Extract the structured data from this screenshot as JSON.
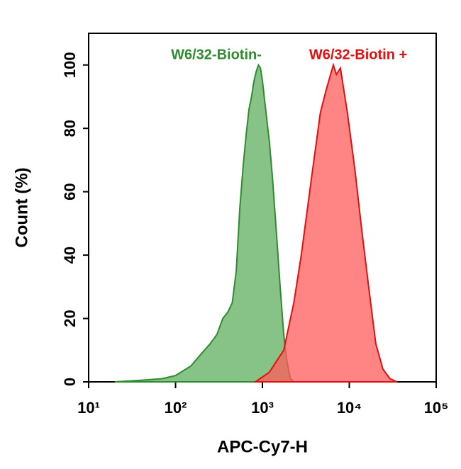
{
  "chart_data": {
    "type": "area",
    "xlabel": "APC-Cy7-H",
    "ylabel": "Count  (%)",
    "xscale": "log",
    "xlim": [
      10,
      100000
    ],
    "ylim": [
      0,
      110
    ],
    "xticks": [
      {
        "value": 10,
        "label": "10¹"
      },
      {
        "value": 100,
        "label": "10²"
      },
      {
        "value": 1000,
        "label": "10³"
      },
      {
        "value": 10000,
        "label": "10⁴"
      },
      {
        "value": 100000,
        "label": "10⁵"
      }
    ],
    "yticks": [
      0,
      20,
      40,
      60,
      80,
      100
    ],
    "series": [
      {
        "name": "W6/32-Biotin-",
        "color": "#2e8b2e",
        "fill": "#5fae5f",
        "x": [
          20,
          40,
          70,
          100,
          150,
          200,
          250,
          300,
          350,
          400,
          450,
          500,
          550,
          600,
          650,
          700,
          750,
          800,
          850,
          900,
          950,
          1000,
          1100,
          1200,
          1300,
          1450,
          1600,
          1760,
          1900,
          2100,
          2300
        ],
        "values": [
          0,
          0.5,
          1,
          2,
          5,
          9,
          12,
          15,
          20,
          22,
          25,
          35,
          55,
          68,
          78,
          86,
          90,
          95,
          98,
          100,
          99,
          95,
          85,
          76,
          65,
          47,
          30,
          15,
          7,
          1,
          0
        ]
      },
      {
        "name": "W6/32-Biotin +",
        "color": "#e01010",
        "fill": "#ff5c5c",
        "x": [
          830,
          1200,
          1760,
          2300,
          2800,
          3700,
          4650,
          5400,
          6550,
          7100,
          7900,
          9500,
          11600,
          13900,
          16700,
          20200,
          24400,
          29400,
          35400
        ],
        "values": [
          0,
          3,
          10,
          25,
          40,
          65,
          85,
          92,
          100,
          97,
          99,
          85,
          67,
          48,
          30,
          12,
          4,
          1,
          0
        ]
      }
    ]
  }
}
